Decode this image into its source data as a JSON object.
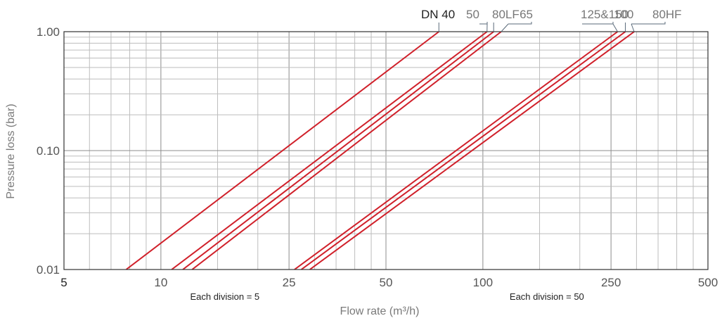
{
  "chart_data": {
    "type": "line",
    "xlabel": "Flow rate (m³/h)",
    "ylabel": "Pressure loss (bar)",
    "x_scale": "log",
    "y_scale": "log",
    "xlim": [
      5,
      500
    ],
    "ylim": [
      0.01,
      1.0
    ],
    "grid": true,
    "x_ticks": [
      {
        "value": 5,
        "label": "5"
      },
      {
        "value": 10,
        "label": "10"
      },
      {
        "value": 25,
        "label": "25"
      },
      {
        "value": 50,
        "label": "50"
      },
      {
        "value": 100,
        "label": "100"
      },
      {
        "value": 250,
        "label": "250"
      },
      {
        "value": 500,
        "label": "500"
      }
    ],
    "y_ticks": [
      {
        "value": 0.01,
        "label": "0.01"
      },
      {
        "value": 0.1,
        "label": "0.10"
      },
      {
        "value": 1.0,
        "label": "1.00"
      }
    ],
    "x_grid_values": [
      5,
      6,
      7,
      8,
      9,
      10,
      15,
      20,
      25,
      30,
      35,
      40,
      45,
      50,
      100,
      150,
      200,
      250,
      300,
      350,
      400,
      450,
      500
    ],
    "y_grid_values": [
      0.01,
      0.02,
      0.03,
      0.04,
      0.05,
      0.06,
      0.07,
      0.08,
      0.09,
      0.1,
      0.2,
      0.3,
      0.4,
      0.5,
      0.6,
      0.7,
      0.8,
      0.9,
      1.0
    ],
    "annotations": [
      {
        "text": "Each division = 5",
        "x": 15.8
      },
      {
        "text": "Each division = 50",
        "x": 158
      }
    ],
    "series_color": "#d0202a",
    "series": [
      {
        "name": "DN 40",
        "x": [
          7.8,
          73
        ],
        "y": [
          0.01,
          1.0
        ],
        "label_x": 73
      },
      {
        "name": "50",
        "x": [
          10.8,
          103
        ],
        "y": [
          0.01,
          1.0
        ],
        "label_x": 103
      },
      {
        "name": "80LF",
        "x": [
          11.7,
          108
        ],
        "y": [
          0.01,
          1.0
        ],
        "label_x": 108
      },
      {
        "name": "65",
        "x": [
          12.5,
          114
        ],
        "y": [
          0.01,
          1.0
        ],
        "label_x": 114
      },
      {
        "name": "125&150",
        "x": [
          26,
          262
        ],
        "y": [
          0.01,
          1.0
        ],
        "label_x": 262
      },
      {
        "name": "100",
        "x": [
          27.3,
          277
        ],
        "y": [
          0.01,
          1.0
        ],
        "label_x": 277
      },
      {
        "name": "80HF",
        "x": [
          29,
          295
        ],
        "y": [
          0.01,
          1.0
        ],
        "label_x": 295
      }
    ]
  }
}
